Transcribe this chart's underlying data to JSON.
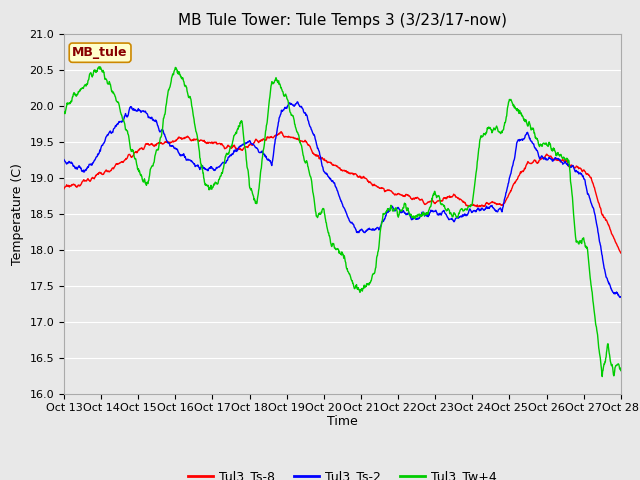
{
  "title": "MB Tule Tower: Tule Temps 3 (3/23/17-now)",
  "xlabel": "Time",
  "ylabel": "Temperature (C)",
  "ylim": [
    16.0,
    21.0
  ],
  "yticks": [
    16.0,
    16.5,
    17.0,
    17.5,
    18.0,
    18.5,
    19.0,
    19.5,
    20.0,
    20.5,
    21.0
  ],
  "xtick_labels": [
    "Oct 13",
    "Oct 14",
    "Oct 15",
    "Oct 16",
    "Oct 17",
    "Oct 18",
    "Oct 19",
    "Oct 20",
    "Oct 21",
    "Oct 22",
    "Oct 23",
    "Oct 24",
    "Oct 25",
    "Oct 26",
    "Oct 27",
    "Oct 28"
  ],
  "legend_labels": [
    "Tul3_Ts-8",
    "Tul3_Ts-2",
    "Tul3_Tw+4"
  ],
  "legend_colors": [
    "#ff0000",
    "#0000ff",
    "#00cc00"
  ],
  "line_width": 1.0,
  "fig_bg_color": "#e8e8e8",
  "plot_bg_color": "#e8e8e8",
  "grid_color": "#ffffff",
  "annotation_text": "MB_tule",
  "annotation_bg": "#ffffcc",
  "annotation_border": "#cc8800",
  "title_fontsize": 11,
  "tick_fontsize": 8,
  "ylabel_fontsize": 9,
  "xlabel_fontsize": 9
}
